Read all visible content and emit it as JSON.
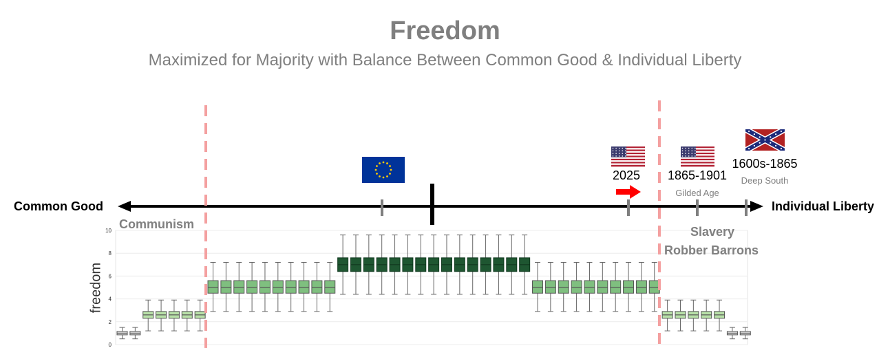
{
  "header": {
    "title": "Freedom",
    "subtitle": "Maximized for Majority with Balance Between Common Good & Individual Liberty"
  },
  "spectrum": {
    "left_label": "Common Good",
    "right_label": "Individual Liberty",
    "communism_label": "Communism",
    "slavery_label": "Slavery",
    "robber_label": "Robber Barrons"
  },
  "markers": [
    {
      "name": "eu",
      "flag": "eu-flag-icon"
    },
    {
      "name": "us-2025",
      "year": "2025",
      "flag": "us-flag-icon"
    },
    {
      "name": "us-gilded",
      "year": "1865-1901",
      "era": "Gilded Age",
      "flag": "us-flag-icon"
    },
    {
      "name": "deep-south",
      "year": "1600s-1865",
      "era": "Deep South",
      "flag": "confederate-flag-icon"
    }
  ],
  "colors": {
    "axis": "#000000",
    "tick": "#7f7f7f",
    "dashed_line": "#f4a0a0",
    "arrow_red": "#ff0000",
    "box_dark": "#1e5631",
    "box_mid": "#7fbf7f",
    "box_light": "#b8e0a8",
    "box_pale": "#e8e8e8"
  },
  "chart_data": {
    "type": "box",
    "ylabel": "freedom",
    "ylim": [
      0,
      10
    ],
    "yticks": [
      "0",
      "2",
      "4",
      "6",
      "8",
      "10"
    ],
    "groups": [
      {
        "level": "pale",
        "count": 2,
        "median": 1.0,
        "q1": 0.85,
        "q3": 1.15,
        "min": 0.5,
        "max": 1.5
      },
      {
        "level": "light",
        "count": 5,
        "median": 2.6,
        "q1": 2.3,
        "q3": 2.9,
        "min": 1.2,
        "max": 3.9
      },
      {
        "level": "mid",
        "count": 10,
        "median": 5.0,
        "q1": 4.5,
        "q3": 5.6,
        "min": 2.9,
        "max": 7.2
      },
      {
        "level": "dark",
        "count": 15,
        "median": 7.0,
        "q1": 6.4,
        "q3": 7.6,
        "min": 4.4,
        "max": 9.6
      },
      {
        "level": "mid",
        "count": 10,
        "median": 5.0,
        "q1": 4.5,
        "q3": 5.6,
        "min": 2.9,
        "max": 7.2
      },
      {
        "level": "light",
        "count": 5,
        "median": 2.6,
        "q1": 2.3,
        "q3": 2.9,
        "min": 1.2,
        "max": 3.9
      },
      {
        "level": "pale",
        "count": 2,
        "median": 1.0,
        "q1": 0.85,
        "q3": 1.15,
        "min": 0.5,
        "max": 1.5
      }
    ]
  }
}
